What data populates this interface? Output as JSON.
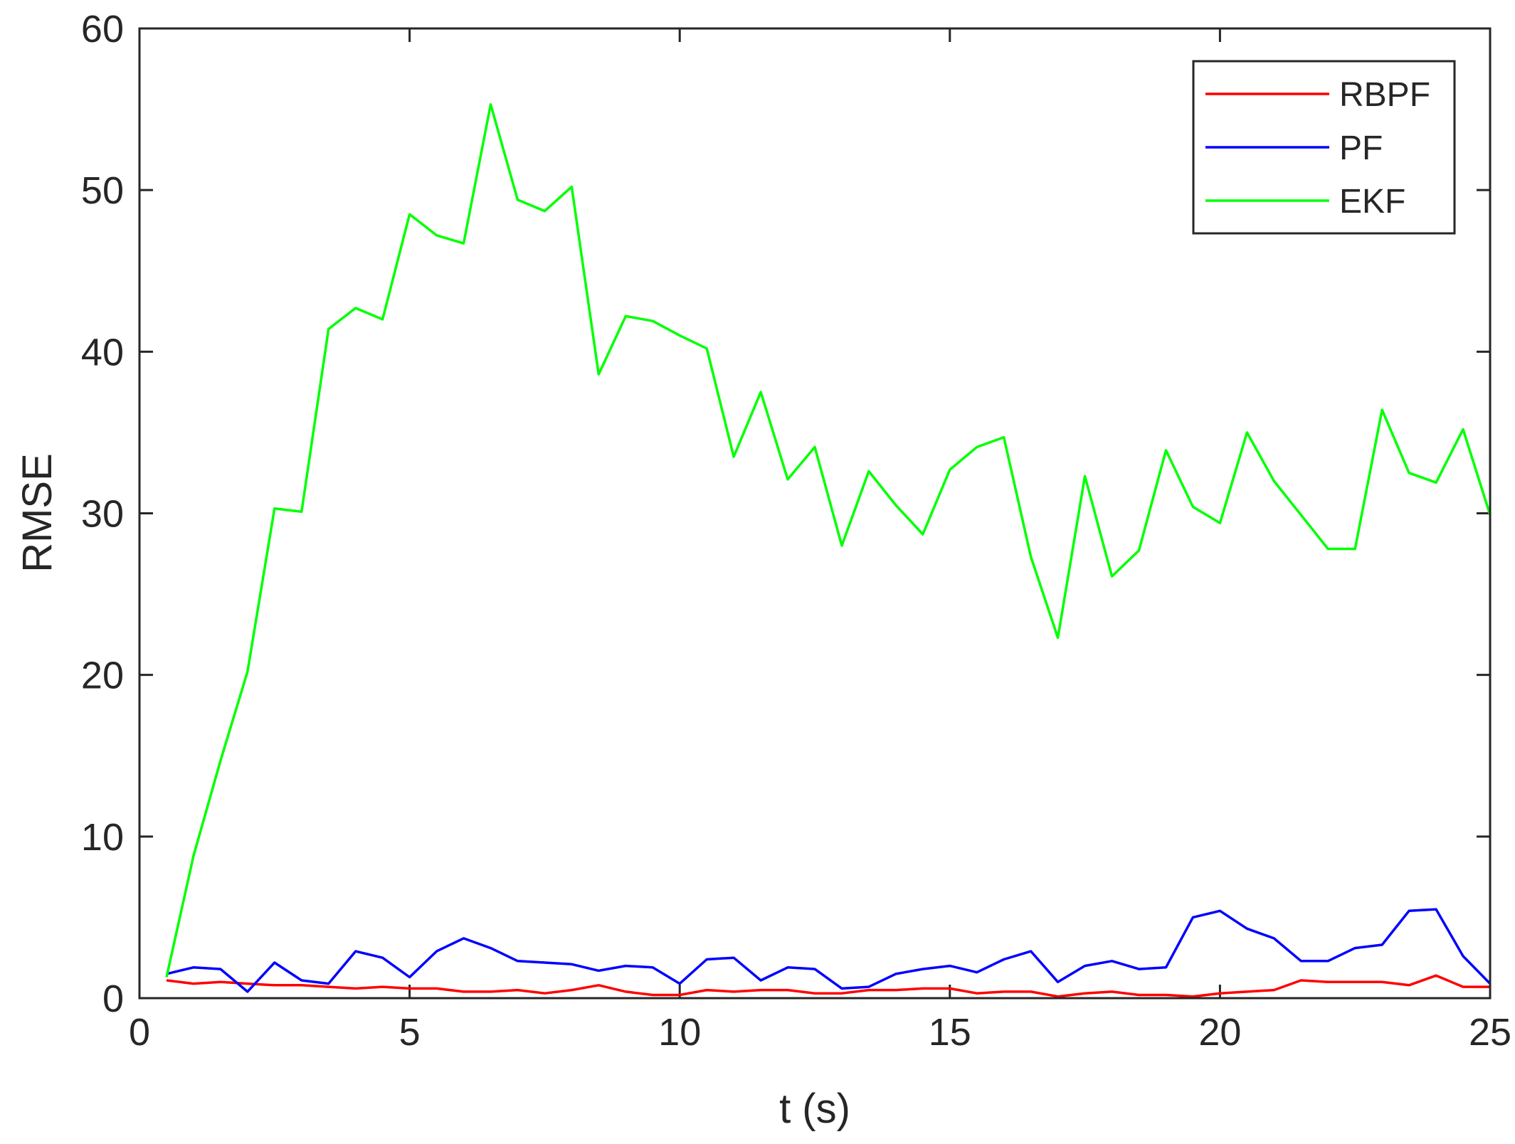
{
  "chart_data": {
    "type": "line",
    "title": "",
    "xlabel": "t (s)",
    "ylabel": "RMSE",
    "xlim": [
      0,
      25
    ],
    "ylim": [
      0,
      60
    ],
    "xticks": [
      0,
      5,
      10,
      15,
      20,
      25
    ],
    "yticks": [
      0,
      10,
      20,
      30,
      40,
      50,
      60
    ],
    "xtick_labels": [
      "0",
      "5",
      "10",
      "15",
      "20",
      "25"
    ],
    "ytick_labels": [
      "0",
      "10",
      "20",
      "30",
      "40",
      "50",
      "60"
    ],
    "grid": false,
    "legend_position": "top-right",
    "x": [
      0.5,
      1,
      1.5,
      2,
      2.5,
      3,
      3.5,
      4,
      4.5,
      5,
      5.5,
      6,
      6.5,
      7,
      7.5,
      8,
      8.5,
      9,
      9.5,
      10,
      10.5,
      11,
      11.5,
      12,
      12.5,
      13,
      13.5,
      14,
      14.5,
      15,
      15.5,
      16,
      16.5,
      17,
      17.5,
      18,
      18.5,
      19,
      19.5,
      20,
      20.5,
      21,
      21.5,
      22,
      22.5,
      23,
      23.5,
      24,
      24.5,
      25
    ],
    "series": [
      {
        "name": "RBPF",
        "color": "#ff0000",
        "values": [
          1.1,
          0.9,
          1.0,
          0.9,
          0.8,
          0.8,
          0.7,
          0.6,
          0.7,
          0.6,
          0.6,
          0.4,
          0.4,
          0.5,
          0.3,
          0.5,
          0.8,
          0.4,
          0.2,
          0.2,
          0.5,
          0.4,
          0.5,
          0.5,
          0.3,
          0.3,
          0.5,
          0.5,
          0.6,
          0.6,
          0.3,
          0.4,
          0.4,
          0.1,
          0.3,
          0.4,
          0.2,
          0.2,
          0.1,
          0.3,
          0.4,
          0.5,
          1.1,
          1.0,
          1.0,
          1.0,
          0.8,
          1.4,
          0.7,
          0.7
        ]
      },
      {
        "name": "PF",
        "color": "#0000ff",
        "values": [
          1.5,
          1.9,
          1.8,
          0.4,
          2.2,
          1.1,
          0.9,
          2.9,
          2.5,
          1.3,
          2.9,
          3.7,
          3.1,
          2.3,
          2.2,
          2.1,
          1.7,
          2.0,
          1.9,
          0.9,
          2.4,
          2.5,
          1.1,
          1.9,
          1.8,
          0.6,
          0.7,
          1.5,
          1.8,
          2.0,
          1.6,
          2.4,
          2.9,
          1.0,
          2.0,
          2.3,
          1.8,
          1.9,
          5.0,
          5.4,
          4.3,
          3.7,
          2.3,
          2.3,
          3.1,
          3.3,
          5.4,
          5.5,
          2.6,
          0.9
        ]
      },
      {
        "name": "EKF",
        "color": "#00ff00",
        "values": [
          1.3,
          8.8,
          14.7,
          20.2,
          30.3,
          30.1,
          41.4,
          42.7,
          42.0,
          48.5,
          47.2,
          46.7,
          55.3,
          49.4,
          48.7,
          50.2,
          38.6,
          42.2,
          41.9,
          41.0,
          40.2,
          33.5,
          37.5,
          32.1,
          34.1,
          28.0,
          32.6,
          30.5,
          28.7,
          32.7,
          34.1,
          34.7,
          27.3,
          22.3,
          32.3,
          26.1,
          27.7,
          33.9,
          30.4,
          29.4,
          35.0,
          32.0,
          29.9,
          27.8,
          27.8,
          36.4,
          32.5,
          31.9,
          35.2,
          29.9
        ]
      }
    ]
  }
}
